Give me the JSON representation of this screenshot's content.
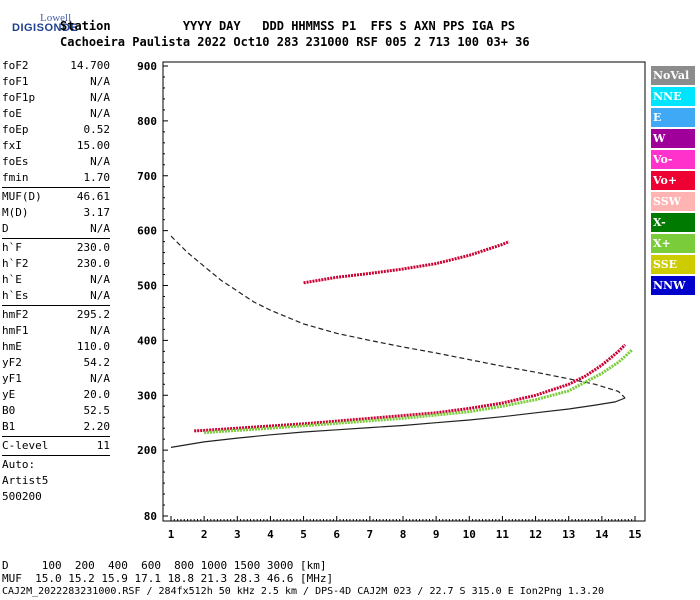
{
  "logo": {
    "top": "Lowell",
    "main": "DIGISONDE"
  },
  "header": {
    "line1": "Station          YYYY DAY   DDD HHMMSS P1  FFS S AXN PPS IGA PS",
    "line2": "Cachoeira Paulista 2022 Oct10 283 231000 RSF 005 2 713 100 03+ 36"
  },
  "params": {
    "group1": [
      {
        "name": "foF2",
        "value": "14.700"
      },
      {
        "name": "foF1",
        "value": "N/A"
      },
      {
        "name": "foF1p",
        "value": "N/A"
      },
      {
        "name": "foE",
        "value": "N/A"
      },
      {
        "name": "foEp",
        "value": "0.52"
      },
      {
        "name": "fxI",
        "value": "15.00"
      },
      {
        "name": "foEs",
        "value": "N/A"
      },
      {
        "name": "fmin",
        "value": "1.70"
      }
    ],
    "group2": [
      {
        "name": "MUF(D)",
        "value": "46.61"
      },
      {
        "name": "M(D)",
        "value": "3.17"
      },
      {
        "name": "D",
        "value": "N/A"
      }
    ],
    "group3": [
      {
        "name": "h`F",
        "value": "230.0"
      },
      {
        "name": "h`F2",
        "value": "230.0"
      },
      {
        "name": "h`E",
        "value": "N/A"
      },
      {
        "name": "h`Es",
        "value": "N/A"
      }
    ],
    "group4": [
      {
        "name": "hmF2",
        "value": "295.2"
      },
      {
        "name": "hmF1",
        "value": "N/A"
      },
      {
        "name": "hmE",
        "value": "110.0"
      },
      {
        "name": "yF2",
        "value": "54.2"
      },
      {
        "name": "yF1",
        "value": "N/A"
      },
      {
        "name": "yE",
        "value": "20.0"
      },
      {
        "name": "B0",
        "value": "52.5"
      },
      {
        "name": "B1",
        "value": "2.20"
      }
    ],
    "group5": [
      {
        "name": "C-level",
        "value": "11"
      }
    ],
    "auto": [
      "Auto:",
      "Artist5",
      "500200"
    ]
  },
  "legend": [
    {
      "label": "NoVal",
      "color": "#8c8c8c"
    },
    {
      "label": "NNE",
      "color": "#00e5ff"
    },
    {
      "label": "E",
      "color": "#3fa9f5"
    },
    {
      "label": "W",
      "color": "#a0009a"
    },
    {
      "label": "Vo-",
      "color": "#ff33cc"
    },
    {
      "label": "Vo+",
      "color": "#ee0033"
    },
    {
      "label": "SSW",
      "color": "#ffb3b3"
    },
    {
      "label": "X-",
      "color": "#007a00"
    },
    {
      "label": "X+",
      "color": "#7acc3a"
    },
    {
      "label": "SSE",
      "color": "#cccc00"
    },
    {
      "label": "NNW",
      "color": "#0000cc"
    }
  ],
  "footer": {
    "line1": "D     100  200  400  600  800 1000 1500 3000 [km]",
    "line2": "MUF  15.0 15.2 15.9 17.1 18.8 21.3 28.3 46.6 [MHz]",
    "line3": "CAJ2M_2022283231000.RSF / 284fx512h 50 kHz 2.5 km / DPS-4D CAJ2M 023 / 22.7 S 315.0 E Ion2Png 1.3.20"
  },
  "chart_data": {
    "type": "scatter",
    "xlim": [
      1,
      15
    ],
    "ylim": [
      80,
      900
    ],
    "x_ticks": [
      1,
      2,
      3,
      4,
      5,
      6,
      7,
      8,
      9,
      10,
      11,
      12,
      13,
      14,
      15
    ],
    "y_ticks": [
      80,
      200,
      300,
      400,
      500,
      600,
      700,
      800,
      900
    ],
    "series": [
      {
        "color": "#cc0033",
        "values": [
          [
            1.7,
            235
          ],
          [
            2,
            236
          ],
          [
            3,
            240
          ],
          [
            4,
            244
          ],
          [
            5,
            248
          ],
          [
            6,
            253
          ],
          [
            7,
            258
          ],
          [
            8,
            263
          ],
          [
            9,
            268
          ],
          [
            10,
            276
          ],
          [
            11,
            286
          ],
          [
            12,
            300
          ],
          [
            13,
            320
          ],
          [
            13.5,
            335
          ],
          [
            14,
            355
          ],
          [
            14.5,
            380
          ],
          [
            14.7,
            392
          ]
        ]
      },
      {
        "color": "#7acc3a",
        "values": [
          [
            2,
            232
          ],
          [
            4,
            240
          ],
          [
            6,
            249
          ],
          [
            8,
            258
          ],
          [
            10,
            270
          ],
          [
            11,
            280
          ],
          [
            12,
            292
          ],
          [
            13,
            308
          ],
          [
            14,
            340
          ],
          [
            14.5,
            360
          ],
          [
            14.9,
            382
          ]
        ]
      },
      {
        "color": "#cc0033",
        "values": [
          [
            5,
            505
          ],
          [
            6,
            515
          ],
          [
            7,
            522
          ],
          [
            8,
            530
          ],
          [
            9,
            540
          ],
          [
            10,
            555
          ],
          [
            11,
            575
          ],
          [
            11.2,
            580
          ]
        ]
      }
    ],
    "curves": [
      {
        "style": "dashed",
        "values": [
          [
            1,
            590
          ],
          [
            1.5,
            560
          ],
          [
            2,
            535
          ],
          [
            2.5,
            510
          ],
          [
            3,
            490
          ],
          [
            3.5,
            470
          ],
          [
            4,
            455
          ],
          [
            5,
            430
          ],
          [
            6,
            413
          ],
          [
            7,
            400
          ],
          [
            8,
            388
          ],
          [
            9,
            377
          ],
          [
            10,
            365
          ],
          [
            11,
            353
          ],
          [
            12,
            342
          ],
          [
            13,
            330
          ],
          [
            13.8,
            320
          ],
          [
            14.5,
            307
          ],
          [
            14.7,
            295
          ]
        ]
      },
      {
        "style": "solid",
        "values": [
          [
            1,
            205
          ],
          [
            2,
            215
          ],
          [
            3,
            222
          ],
          [
            4,
            228
          ],
          [
            5,
            233
          ],
          [
            6,
            237
          ],
          [
            7,
            241
          ],
          [
            8,
            245
          ],
          [
            9,
            250
          ],
          [
            10,
            255
          ],
          [
            11,
            261
          ],
          [
            12,
            268
          ],
          [
            13,
            275
          ],
          [
            13.8,
            282
          ],
          [
            14.4,
            288
          ],
          [
            14.7,
            295
          ]
        ]
      }
    ]
  }
}
